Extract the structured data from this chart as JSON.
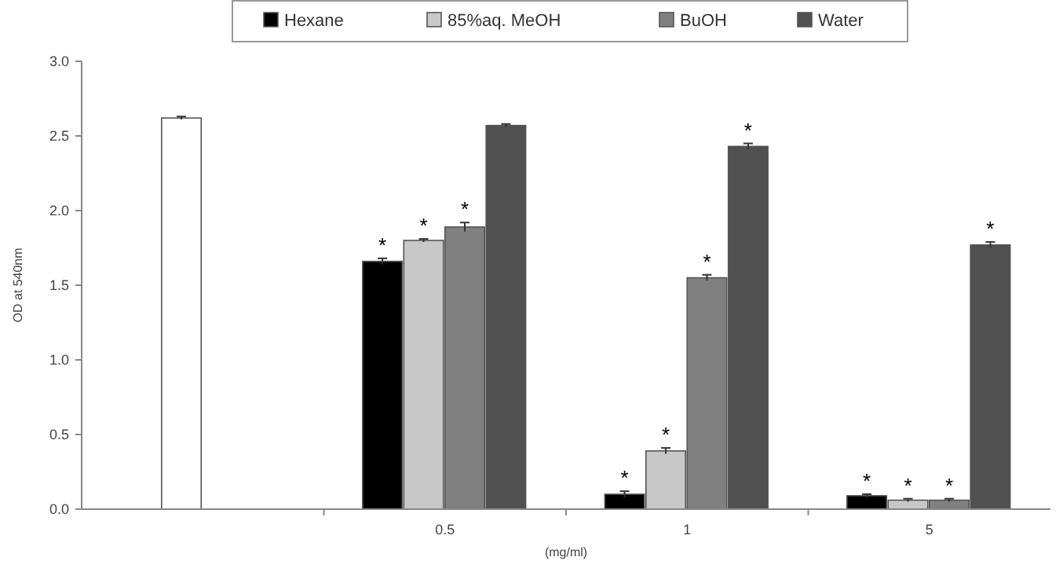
{
  "chart_data": {
    "type": "bar",
    "xlabel": "(mg/ml)",
    "ylabel": "OD at 540nm",
    "categories": [
      null,
      "0.5",
      "1",
      "5"
    ],
    "series": [
      {
        "name": "Hexane",
        "color": "#000000",
        "values": [
          null,
          1.66,
          0.1,
          0.09
        ],
        "errors": [
          null,
          0.02,
          0.02,
          0.01
        ],
        "value_labels": [
          null,
          "*",
          "*",
          "*"
        ]
      },
      {
        "name": "85%aq. MeOH",
        "color": "#c8c8c8",
        "colors": [
          "#ffffff",
          "#c8c8c8",
          "#c8c8c8",
          "#c8c8c8"
        ],
        "values": [
          2.62,
          1.8,
          0.39,
          0.06
        ],
        "errors": [
          0.01,
          0.01,
          0.02,
          0.01
        ],
        "value_labels": [
          null,
          "*",
          "*",
          "*"
        ]
      },
      {
        "name": "BuOH",
        "color": "#808080",
        "values": [
          null,
          1.89,
          1.55,
          0.06
        ],
        "errors": [
          null,
          0.03,
          0.02,
          0.01
        ],
        "value_labels": [
          null,
          "*",
          "*",
          "*"
        ]
      },
      {
        "name": "Water",
        "color": "#505050",
        "values": [
          null,
          2.57,
          2.43,
          1.77
        ],
        "errors": [
          null,
          0.01,
          0.02,
          0.02
        ],
        "value_labels": [
          null,
          null,
          "*",
          "*"
        ]
      }
    ],
    "ylim": [
      0,
      3
    ],
    "yticks": [
      "0.0",
      0.5,
      "1.0",
      1.5,
      "2.0",
      2.5,
      "3.0"
    ],
    "legend": "top",
    "grid": false
  }
}
